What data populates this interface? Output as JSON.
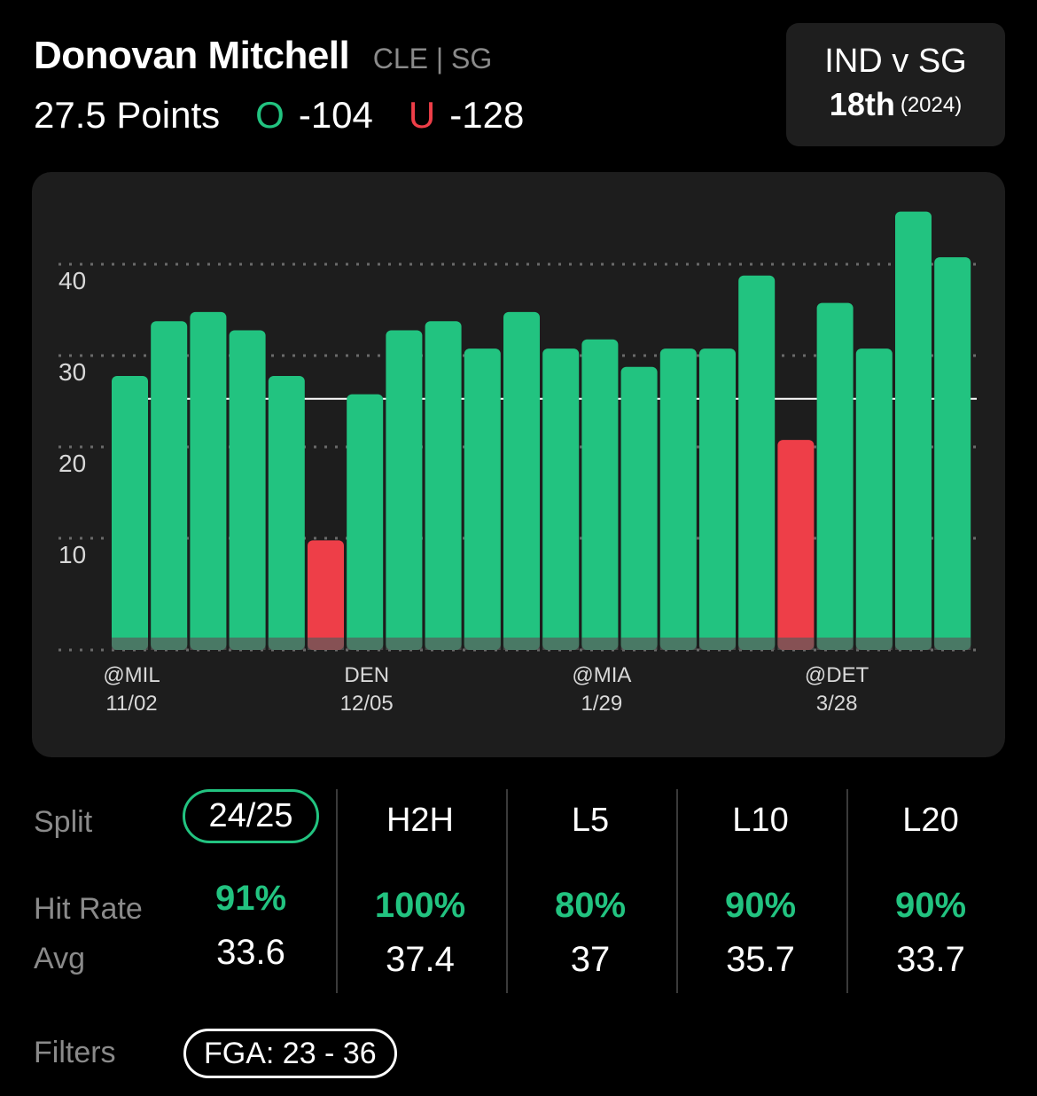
{
  "player": {
    "name": "Donovan Mitchell",
    "team_pos": "CLE | SG"
  },
  "line": {
    "label": "27.5 Points",
    "over_symbol": "O",
    "over_odds": "-104",
    "under_symbol": "U",
    "under_odds": "-128"
  },
  "matchup": {
    "title": "IND v SG",
    "rank": "18th",
    "year": "(2024)"
  },
  "colors": {
    "over": "#22c380",
    "under": "#ee3e48",
    "card": "#1d1d1d"
  },
  "chart_data": {
    "type": "bar",
    "threshold": 27.5,
    "ylim": [
      0,
      48
    ],
    "yticks": [
      10,
      20,
      30,
      40
    ],
    "values": [
      30,
      36,
      37,
      35,
      30,
      12,
      28,
      35,
      36,
      33,
      37,
      33,
      34,
      31,
      33,
      33,
      41,
      23,
      38,
      33,
      48,
      43
    ],
    "x_labels": [
      {
        "index": 0,
        "opponent": "@MIL",
        "date": "11/02"
      },
      {
        "index": 6,
        "opponent": "DEN",
        "date": "12/05"
      },
      {
        "index": 12,
        "opponent": "@MIA",
        "date": "1/29"
      },
      {
        "index": 18,
        "opponent": "@DET",
        "date": "3/28"
      }
    ]
  },
  "splits": {
    "labels": {
      "split": "Split",
      "hit_rate": "Hit Rate",
      "avg": "Avg"
    },
    "columns": [
      {
        "name": "24/25",
        "hit_rate": "91%",
        "avg": "33.6",
        "selected": true
      },
      {
        "name": "H2H",
        "hit_rate": "100%",
        "avg": "37.4",
        "selected": false
      },
      {
        "name": "L5",
        "hit_rate": "80%",
        "avg": "37",
        "selected": false
      },
      {
        "name": "L10",
        "hit_rate": "90%",
        "avg": "35.7",
        "selected": false
      },
      {
        "name": "L20",
        "hit_rate": "90%",
        "avg": "33.7",
        "selected": false
      }
    ]
  },
  "filters": {
    "label": "Filters",
    "chip": "FGA: 23 - 36"
  }
}
